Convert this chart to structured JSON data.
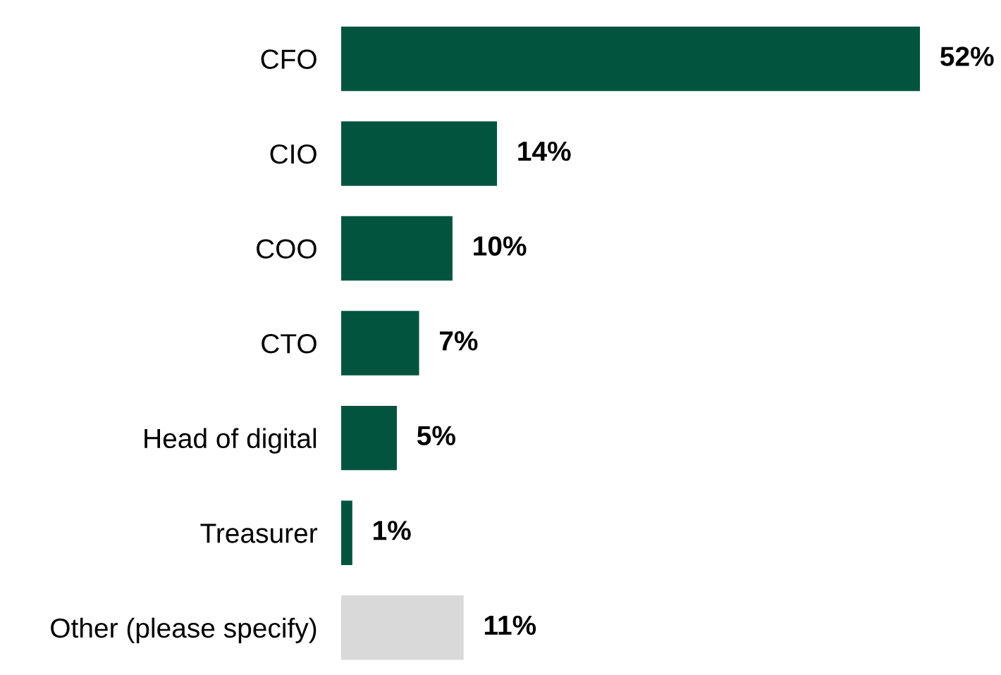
{
  "chart_data": {
    "type": "bar",
    "orientation": "horizontal",
    "categories": [
      "CFO",
      "CIO",
      "COO",
      "CTO",
      "Head of digital",
      "Treasurer",
      "Other (please specify)"
    ],
    "values": [
      52,
      14,
      10,
      7,
      5,
      1,
      11
    ],
    "colors": [
      "#03543f",
      "#03543f",
      "#03543f",
      "#03543f",
      "#03543f",
      "#03543f",
      "#d9d9d9"
    ],
    "value_labels": [
      "52%",
      "14%",
      "10%",
      "7%",
      "5%",
      "1%",
      "11%"
    ],
    "grid": false,
    "legend": false
  }
}
